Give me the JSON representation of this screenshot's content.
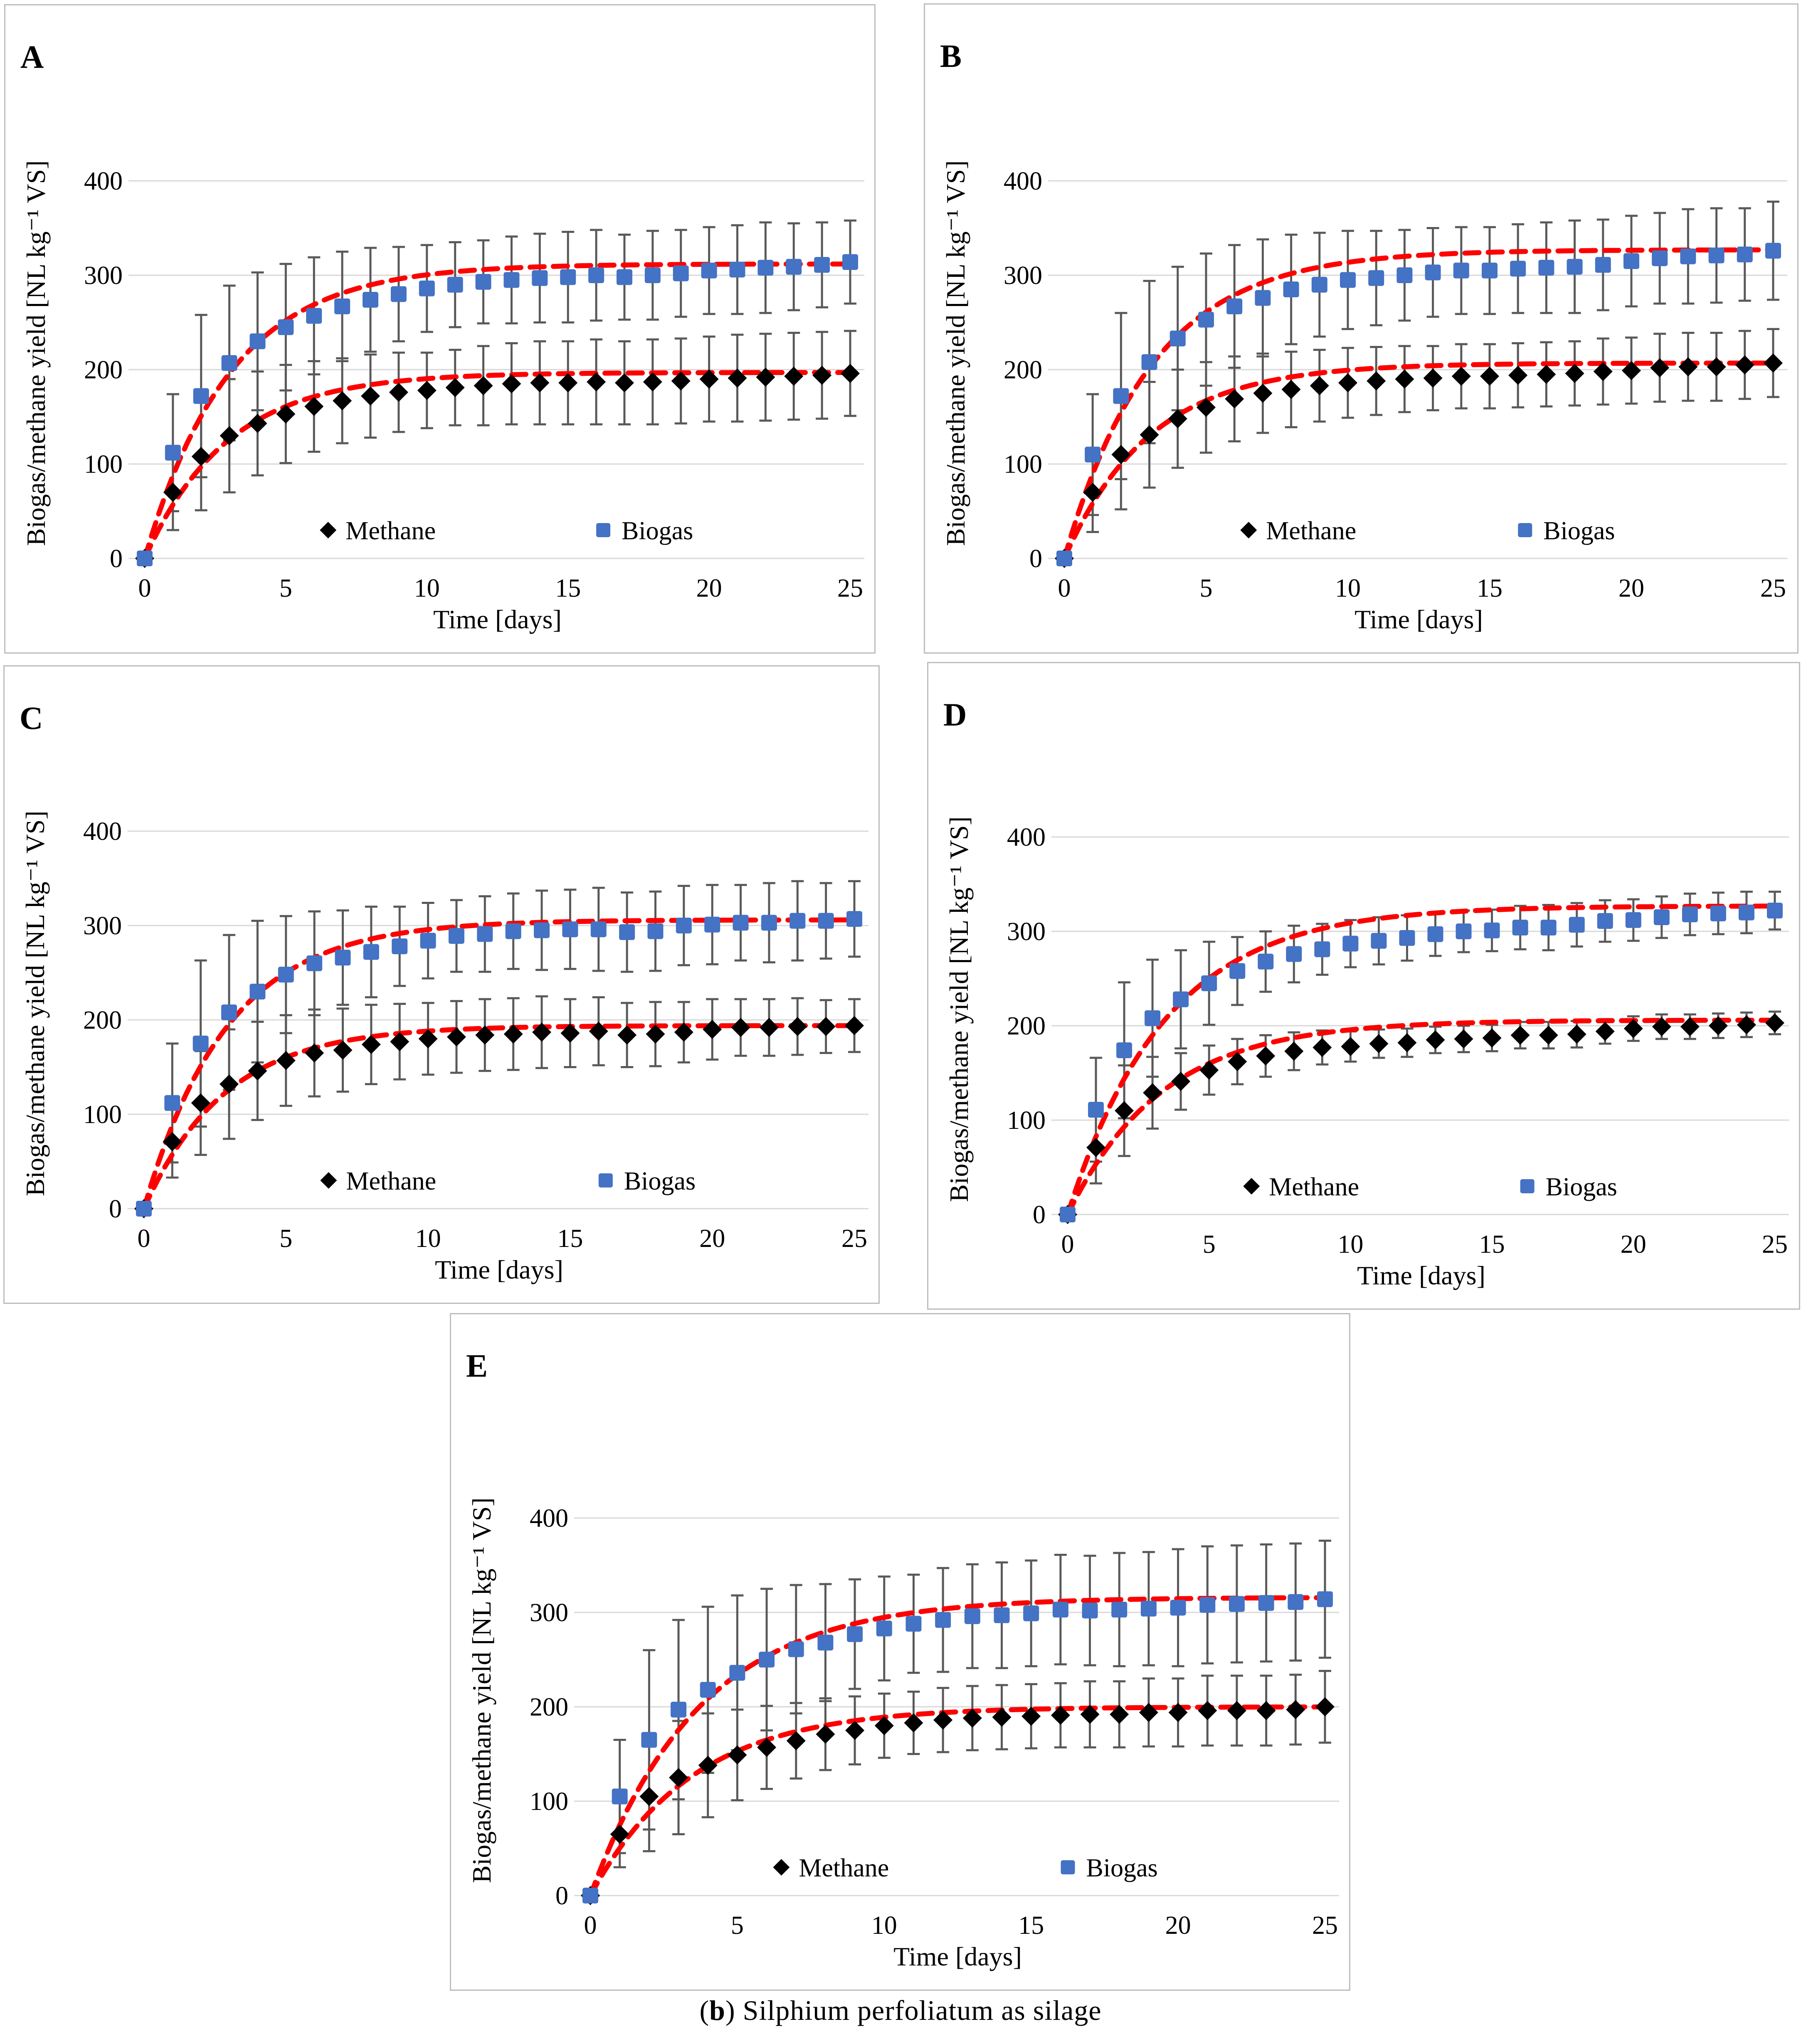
{
  "caption": {
    "prefix": "(",
    "bold": "b",
    "rest": ") Silphium perfoliatum as silage"
  },
  "colors": {
    "methane": "#000000",
    "biogas": "#4472C4",
    "fit_line": "#FF0000",
    "error_bar": "#595959",
    "gridline": "#D8D8D8",
    "panel_border": "#BDBDBD",
    "text": "#000000"
  },
  "axis": {
    "x_label": "Time [days]",
    "y_label": "Biogas/methane yield  [NL kg⁻¹ VS]",
    "x_ticks": [
      0,
      5,
      10,
      15,
      20,
      25
    ],
    "y_ticks": [
      0,
      100,
      200,
      300,
      400
    ],
    "x_range": [
      0,
      25
    ],
    "y_range": [
      0,
      435
    ],
    "grid": "horizontal"
  },
  "legend": {
    "methane_label": "Methane",
    "biogas_label": "Biogas",
    "position": "inside-bottom-center"
  },
  "chart_data": [
    {
      "type": "scatter",
      "panel_label": "A",
      "xlabel": "Time [days]",
      "ylabel": "Biogas/methane yield  [NL kg⁻¹ VS]",
      "x": [
        0,
        1,
        2,
        3,
        4,
        5,
        6,
        7,
        8,
        9,
        10,
        11,
        12,
        13,
        14,
        15,
        16,
        17,
        18,
        19,
        20,
        21,
        22,
        23,
        24,
        25
      ],
      "xticks": [
        0,
        5,
        10,
        15,
        20,
        25
      ],
      "yticks": [
        0,
        100,
        200,
        300,
        400
      ],
      "ylim": [
        0,
        435
      ],
      "series": [
        {
          "name": "Methane",
          "marker": "diamond",
          "color": "#000000",
          "values": [
            0,
            70,
            108,
            130,
            143,
            153,
            161,
            167,
            172,
            176,
            178,
            181,
            183,
            185,
            186,
            186,
            187,
            186,
            187,
            188,
            190,
            191,
            192,
            193,
            194,
            196
          ],
          "errors": [
            3,
            40,
            57,
            60,
            55,
            52,
            48,
            45,
            44,
            42,
            40,
            40,
            42,
            43,
            44,
            44,
            45,
            44,
            45,
            45,
            45,
            46,
            46,
            46,
            46,
            45
          ],
          "fit_curve": {
            "type": "exponential",
            "L": 197,
            "k": 0.34
          }
        },
        {
          "name": "Biogas",
          "marker": "square",
          "color": "#4472C4",
          "values": [
            0,
            112,
            172,
            207,
            230,
            245,
            257,
            267,
            274,
            280,
            286,
            290,
            293,
            295,
            297,
            298,
            300,
            298,
            300,
            302,
            305,
            306,
            308,
            309,
            311,
            314
          ],
          "errors": [
            4,
            62,
            86,
            82,
            73,
            67,
            62,
            58,
            55,
            50,
            46,
            45,
            44,
            46,
            47,
            48,
            48,
            45,
            47,
            46,
            46,
            47,
            48,
            46,
            45,
            44
          ],
          "fit_curve": {
            "type": "exponential",
            "L": 312,
            "k": 0.33
          }
        }
      ]
    },
    {
      "type": "scatter",
      "panel_label": "B",
      "xlabel": "Time [days]",
      "ylabel": "Biogas/methane yield  [NL kg⁻¹ VS]",
      "x": [
        0,
        1,
        2,
        3,
        4,
        5,
        6,
        7,
        8,
        9,
        10,
        11,
        12,
        13,
        14,
        15,
        16,
        17,
        18,
        19,
        20,
        21,
        22,
        23,
        24,
        25
      ],
      "xticks": [
        0,
        5,
        10,
        15,
        20,
        25
      ],
      "yticks": [
        0,
        100,
        200,
        300,
        400
      ],
      "ylim": [
        0,
        435
      ],
      "series": [
        {
          "name": "Methane",
          "marker": "diamond",
          "color": "#000000",
          "values": [
            0,
            70,
            110,
            131,
            148,
            160,
            169,
            175,
            179,
            183,
            186,
            188,
            190,
            191,
            193,
            193,
            194,
            195,
            196,
            198,
            199,
            202,
            203,
            203,
            205,
            207
          ],
          "errors": [
            3,
            42,
            58,
            56,
            52,
            48,
            45,
            42,
            40,
            38,
            37,
            36,
            35,
            34,
            34,
            34,
            34,
            34,
            34,
            35,
            35,
            36,
            36,
            36,
            36,
            36
          ],
          "fit_curve": {
            "type": "exponential",
            "L": 207,
            "k": 0.33
          }
        },
        {
          "name": "Biogas",
          "marker": "square",
          "color": "#4472C4",
          "values": [
            0,
            110,
            172,
            208,
            233,
            253,
            267,
            276,
            285,
            290,
            295,
            297,
            300,
            303,
            305,
            305,
            307,
            308,
            309,
            311,
            315,
            318,
            320,
            321,
            322,
            326
          ],
          "errors": [
            4,
            64,
            88,
            86,
            76,
            70,
            65,
            62,
            58,
            55,
            52,
            50,
            48,
            47,
            46,
            46,
            47,
            48,
            49,
            48,
            48,
            48,
            50,
            50,
            49,
            52
          ],
          "fit_curve": {
            "type": "exponential",
            "L": 327,
            "k": 0.32
          }
        }
      ]
    },
    {
      "type": "scatter",
      "panel_label": "C",
      "xlabel": "Time [days]",
      "ylabel": "Biogas/methane yield  [NL kg⁻¹ VS]",
      "x": [
        0,
        1,
        2,
        3,
        4,
        5,
        6,
        7,
        8,
        9,
        10,
        11,
        12,
        13,
        14,
        15,
        16,
        17,
        18,
        19,
        20,
        21,
        22,
        23,
        24,
        25
      ],
      "xticks": [
        0,
        5,
        10,
        15,
        20,
        25
      ],
      "yticks": [
        0,
        100,
        200,
        300,
        400
      ],
      "ylim": [
        0,
        435
      ],
      "series": [
        {
          "name": "Methane",
          "marker": "diamond",
          "color": "#000000",
          "values": [
            0,
            71,
            112,
            132,
            146,
            157,
            165,
            168,
            174,
            177,
            180,
            182,
            184,
            185,
            187,
            186,
            188,
            184,
            185,
            187,
            190,
            192,
            192,
            193,
            193,
            194
          ],
          "errors": [
            3,
            38,
            55,
            58,
            52,
            48,
            46,
            44,
            42,
            40,
            38,
            38,
            38,
            38,
            38,
            36,
            36,
            34,
            34,
            32,
            32,
            30,
            30,
            30,
            28,
            28
          ],
          "fit_curve": {
            "type": "exponential",
            "L": 194,
            "k": 0.35
          }
        },
        {
          "name": "Biogas",
          "marker": "square",
          "color": "#4472C4",
          "values": [
            0,
            112,
            175,
            208,
            230,
            248,
            260,
            266,
            272,
            278,
            284,
            289,
            291,
            294,
            295,
            296,
            296,
            293,
            294,
            300,
            301,
            303,
            303,
            305,
            305,
            307
          ],
          "errors": [
            4,
            63,
            88,
            82,
            75,
            62,
            55,
            50,
            48,
            42,
            40,
            38,
            40,
            40,
            42,
            42,
            44,
            42,
            42,
            42,
            42,
            40,
            42,
            42,
            40,
            40
          ],
          "fit_curve": {
            "type": "exponential",
            "L": 306,
            "k": 0.34
          }
        }
      ]
    },
    {
      "type": "scatter",
      "panel_label": "D",
      "xlabel": "Time [days]",
      "ylabel": "Biogas/methane yield  [NL kg⁻¹ VS]",
      "x": [
        0,
        1,
        2,
        3,
        4,
        5,
        6,
        7,
        8,
        9,
        10,
        11,
        12,
        13,
        14,
        15,
        16,
        17,
        18,
        19,
        20,
        21,
        22,
        23,
        24,
        25
      ],
      "xticks": [
        0,
        5,
        10,
        15,
        20,
        25
      ],
      "yticks": [
        0,
        100,
        200,
        300,
        400
      ],
      "ylim": [
        0,
        435
      ],
      "series": [
        {
          "name": "Methane",
          "marker": "diamond",
          "color": "#000000",
          "values": [
            0,
            71,
            110,
            129,
            141,
            153,
            162,
            168,
            173,
            177,
            178,
            181,
            182,
            185,
            186,
            187,
            190,
            190,
            191,
            194,
            197,
            199,
            199,
            200,
            201,
            203
          ],
          "errors": [
            3,
            38,
            48,
            38,
            30,
            26,
            24,
            22,
            20,
            18,
            16,
            15,
            15,
            14,
            14,
            14,
            14,
            14,
            14,
            13,
            13,
            13,
            13,
            13,
            13,
            12
          ],
          "fit_curve": {
            "type": "exponential",
            "L": 206,
            "k": 0.3
          }
        },
        {
          "name": "Biogas",
          "marker": "square",
          "color": "#4472C4",
          "values": [
            0,
            111,
            174,
            208,
            228,
            245,
            258,
            268,
            276,
            281,
            287,
            290,
            293,
            297,
            300,
            301,
            304,
            304,
            307,
            311,
            312,
            315,
            318,
            319,
            320,
            322
          ],
          "errors": [
            4,
            55,
            72,
            62,
            52,
            44,
            36,
            32,
            30,
            27,
            25,
            25,
            24,
            23,
            22,
            22,
            23,
            24,
            23,
            22,
            22,
            22,
            22,
            22,
            22,
            20
          ],
          "fit_curve": {
            "type": "exponential",
            "L": 327,
            "k": 0.29
          }
        }
      ]
    },
    {
      "type": "scatter",
      "panel_label": "E",
      "xlabel": "Time [days]",
      "ylabel": "Biogas/methane yield  [NL kg⁻¹ VS]",
      "x": [
        0,
        1,
        2,
        3,
        4,
        5,
        6,
        7,
        8,
        9,
        10,
        11,
        12,
        13,
        14,
        15,
        16,
        17,
        18,
        19,
        20,
        21,
        22,
        23,
        24,
        25
      ],
      "xticks": [
        0,
        5,
        10,
        15,
        20,
        25
      ],
      "yticks": [
        0,
        100,
        200,
        300,
        400
      ],
      "ylim": [
        0,
        435
      ],
      "series": [
        {
          "name": "Methane",
          "marker": "diamond",
          "color": "#000000",
          "values": [
            0,
            65,
            105,
            125,
            138,
            149,
            157,
            164,
            171,
            175,
            180,
            183,
            186,
            188,
            189,
            190,
            191,
            192,
            192,
            194,
            194,
            196,
            196,
            196,
            197,
            200
          ],
          "errors": [
            3,
            35,
            58,
            60,
            55,
            48,
            44,
            40,
            38,
            36,
            34,
            33,
            34,
            34,
            34,
            34,
            34,
            35,
            35,
            36,
            36,
            37,
            37,
            37,
            37,
            38
          ],
          "fit_curve": {
            "type": "exponential",
            "L": 200,
            "k": 0.29
          }
        },
        {
          "name": "Biogas",
          "marker": "square",
          "color": "#4472C4",
          "values": [
            0,
            105,
            165,
            197,
            218,
            236,
            250,
            261,
            268,
            277,
            283,
            288,
            292,
            296,
            297,
            299,
            303,
            302,
            303,
            304,
            305,
            308,
            309,
            310,
            311,
            314
          ],
          "errors": [
            4,
            60,
            95,
            95,
            88,
            82,
            75,
            68,
            62,
            58,
            55,
            52,
            55,
            55,
            56,
            56,
            58,
            58,
            60,
            60,
            62,
            62,
            62,
            62,
            62,
            62
          ],
          "fit_curve": {
            "type": "exponential",
            "L": 316,
            "k": 0.27
          }
        }
      ]
    }
  ]
}
